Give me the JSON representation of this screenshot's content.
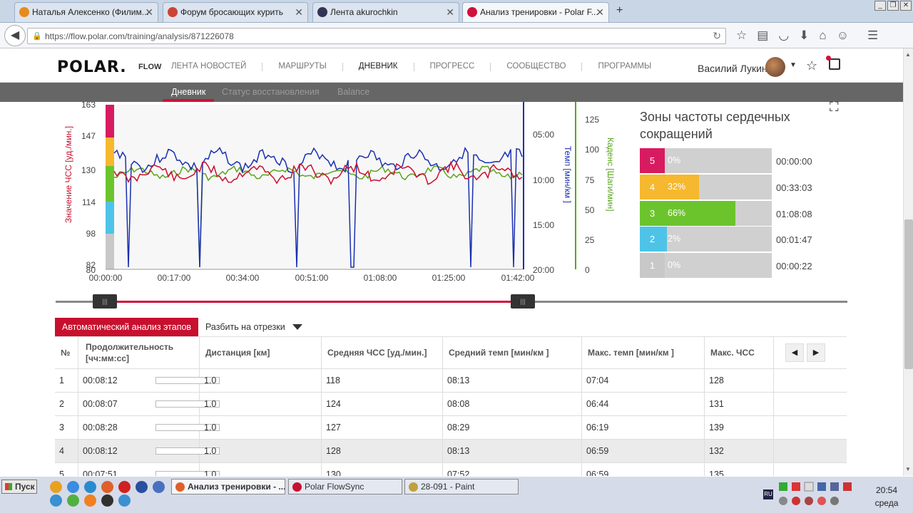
{
  "browser": {
    "tabs": [
      {
        "label": "Наталья Алексенко (Филим...",
        "color": "#e88a1a"
      },
      {
        "label": "Форум бросающих курить",
        "color": "#c43"
      },
      {
        "label": "Лента akurochkin",
        "color": "#335"
      },
      {
        "label": "Анализ тренировки - Polar F...",
        "color": "#d0103a"
      }
    ],
    "new_tab": "+",
    "url": "https://flow.polar.com/training/analysis/871226078"
  },
  "header": {
    "logo": "POLAR.",
    "flow": "FLOW",
    "nav": [
      "ЛЕНТА НОВОСТЕЙ",
      "МАРШРУТЫ",
      "ДНЕВНИК",
      "ПРОГРЕСС",
      "СООБЩЕСТВО",
      "ПРОГРАММЫ"
    ],
    "active_nav": "ДНЕВНИК",
    "user": "Василий Лукин"
  },
  "subnav": [
    "Дневник",
    "Статус восстановления",
    "Balance"
  ],
  "chart_data": {
    "type": "line",
    "x_ticks": [
      "00:00:00",
      "00:17:00",
      "00:34:00",
      "00:51:00",
      "01:08:00",
      "01:25:00",
      "01:42:00"
    ],
    "hr_ticks": [
      "163",
      "147",
      "130",
      "114",
      "98",
      "82",
      "80"
    ],
    "pace_ticks": [
      "05:00",
      "10:00",
      "15:00",
      "20:00"
    ],
    "cadence_ticks": [
      "125",
      "100",
      "75",
      "50",
      "25",
      "0"
    ],
    "ylabel_hr": "Значение ЧСС [уд./мин.]",
    "ylabel_pace": "Темп [мин/км ]",
    "ylabel_cadence": "Каденс [Шаги/мин]",
    "colors": {
      "hr": "#c8102e",
      "pace": "#1a2fb0",
      "cadence": "#5aa51e"
    }
  },
  "zones": {
    "title": "Зоны частоты сердечных сокращений",
    "items": [
      {
        "num": "5",
        "pct": "0%",
        "fill": 0.0,
        "time": "00:00:00",
        "color": "#d81b60"
      },
      {
        "num": "4",
        "pct": "32%",
        "fill": 0.32,
        "time": "00:33:03",
        "color": "#f5b82e"
      },
      {
        "num": "3",
        "pct": "66%",
        "fill": 0.66,
        "time": "01:08:08",
        "color": "#6cc42d"
      },
      {
        "num": "2",
        "pct": "2%",
        "fill": 0.02,
        "time": "00:01:47",
        "color": "#4ec3e8"
      },
      {
        "num": "1",
        "pct": "0%",
        "fill": 0.0,
        "time": "00:00:22",
        "color": "#c8c8c8"
      }
    ]
  },
  "analysis": {
    "auto_label": "Автоматический анализ этапов",
    "split_label": "Разбить на отрезки",
    "headers": [
      "№",
      "Продолжительность [чч:мм:сс]",
      "Дистанция [км]",
      "Средняя ЧСС [уд./мин.]",
      "Средний темп [мин/км ]",
      "Макс. темп [мин/км ]",
      "Макс. ЧСС"
    ],
    "rows": [
      [
        "1",
        "00:08:12",
        "1.0",
        "118",
        "08:13",
        "07:04",
        "128"
      ],
      [
        "2",
        "00:08:07",
        "1.0",
        "124",
        "08:08",
        "06:44",
        "131"
      ],
      [
        "3",
        "00:08:28",
        "1.0",
        "127",
        "08:29",
        "06:19",
        "139"
      ],
      [
        "4",
        "00:08:12",
        "1.0",
        "128",
        "08:13",
        "06:59",
        "132"
      ],
      [
        "5",
        "00:07:51",
        "1.0",
        "130",
        "07:52",
        "06:59",
        "135"
      ]
    ]
  },
  "taskbar": {
    "start": "Пуск",
    "tasks": [
      "Анализ тренировки - ...",
      "Polar FlowSync",
      "28-091 - Paint"
    ],
    "lang": "RU",
    "time": "20:54",
    "day": "среда"
  }
}
